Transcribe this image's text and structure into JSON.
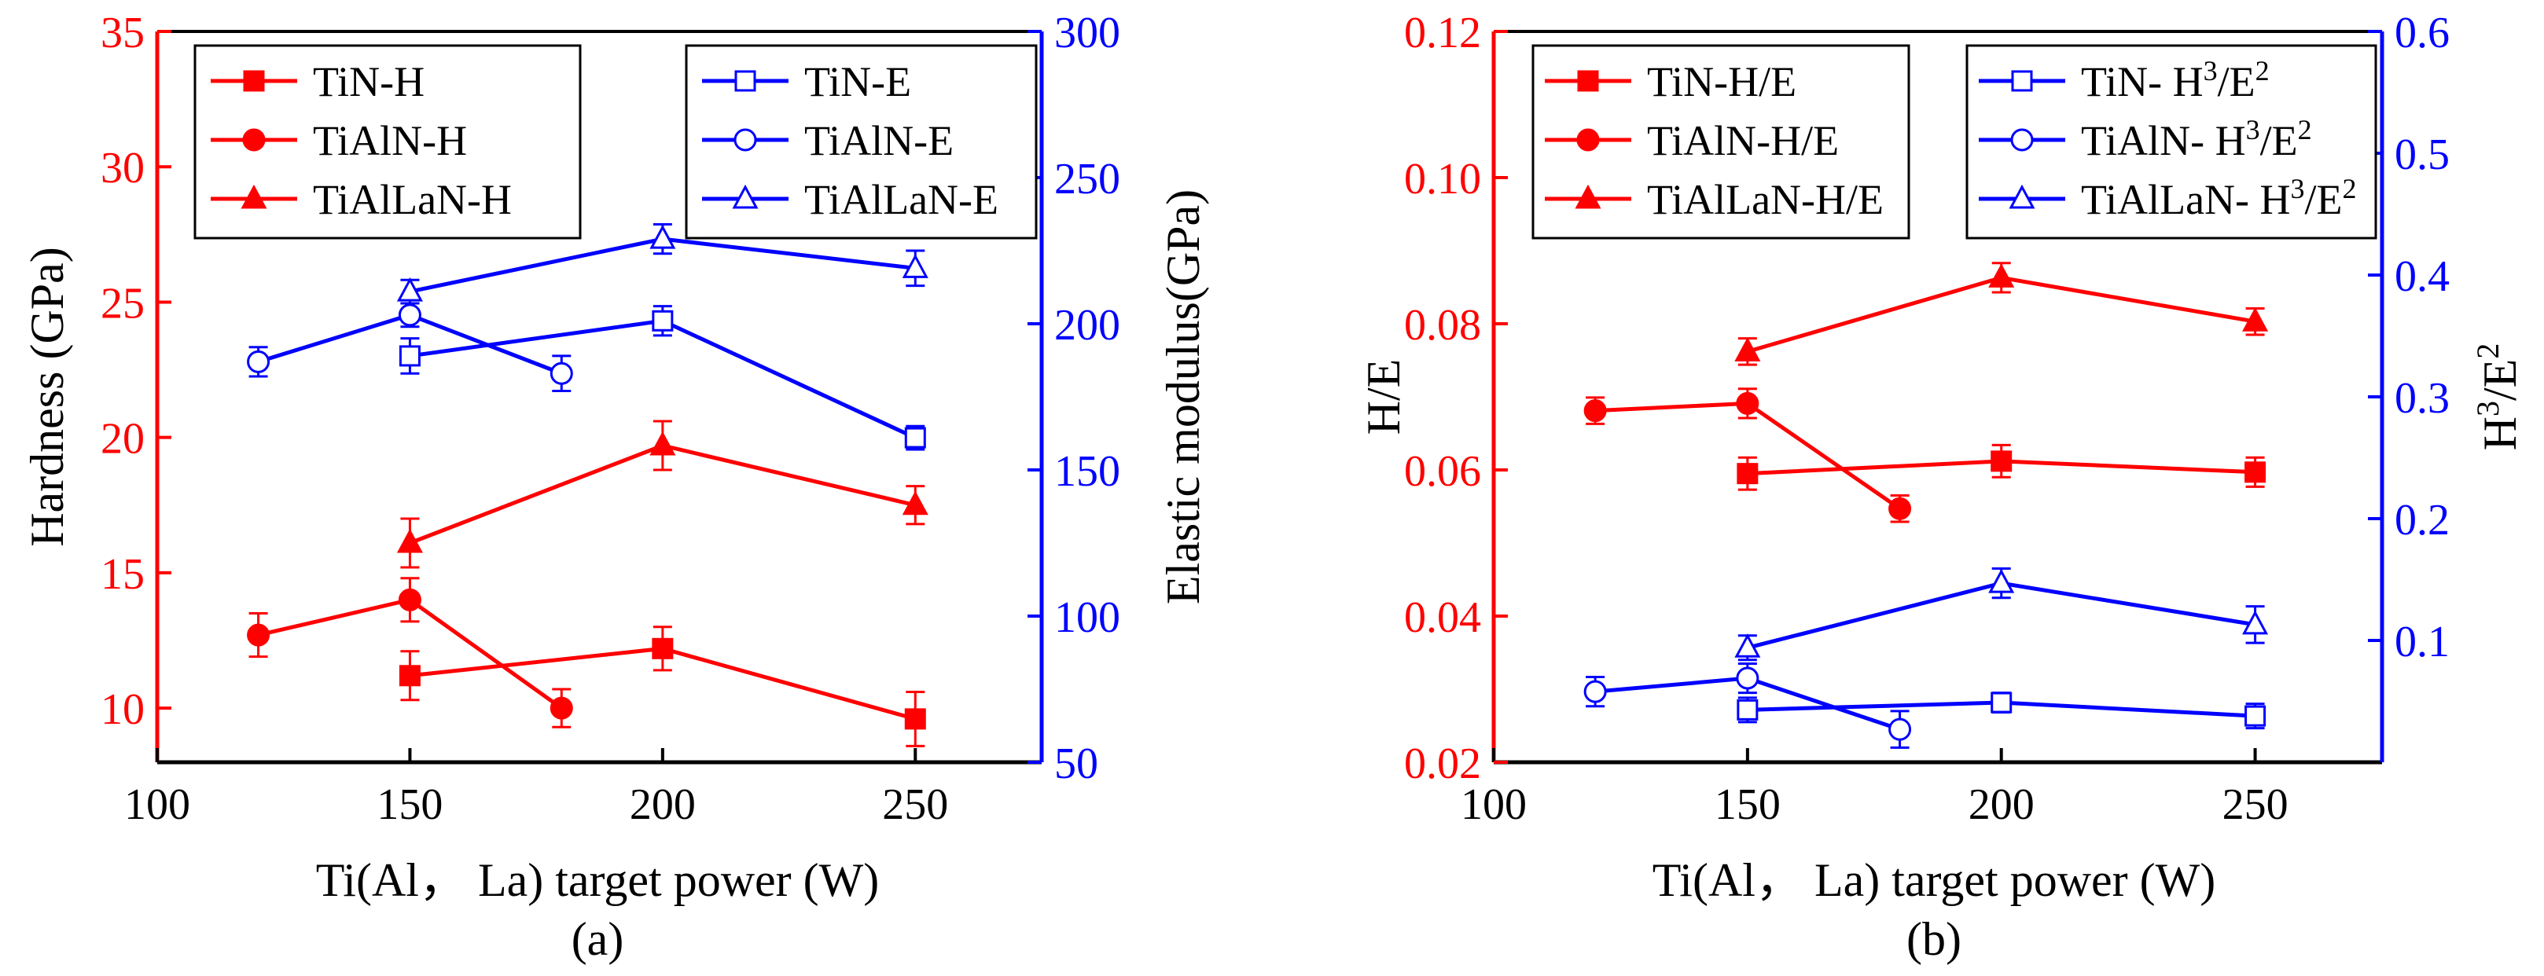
{
  "colors": {
    "red": "#ff0000",
    "blue": "#0000ff",
    "black": "#000000"
  },
  "chart_data": [
    {
      "type": "line",
      "panel_label": "(a)",
      "xlabel": "Ti(Al， La) target power (W)",
      "xlim": [
        100,
        275
      ],
      "x_ticks": [
        100,
        150,
        200,
        250
      ],
      "y_left": {
        "label": "Hardness (GPa)",
        "lim": [
          8,
          35
        ],
        "ticks": [
          10,
          15,
          20,
          25,
          30,
          35
        ],
        "tick_labels": [
          "10",
          "15",
          "20",
          "25",
          "30",
          "35"
        ]
      },
      "y_right": {
        "label": "Elastic modulus(GPa)",
        "lim": [
          50,
          300
        ],
        "ticks": [
          50,
          100,
          150,
          200,
          250,
          300
        ],
        "tick_labels": [
          "50",
          "100",
          "150",
          "200",
          "250",
          "300"
        ]
      },
      "series": [
        {
          "name": "TiN-H",
          "axis": "left",
          "color": "#ff0000",
          "marker": "square",
          "filled": true,
          "x": [
            150,
            200,
            250
          ],
          "y": [
            11.2,
            12.2,
            9.6
          ],
          "err": [
            0.9,
            0.8,
            1.0
          ]
        },
        {
          "name": "TiAlN-H",
          "axis": "left",
          "color": "#ff0000",
          "marker": "circle",
          "filled": true,
          "x": [
            120,
            150,
            180
          ],
          "y": [
            12.7,
            14.0,
            10.0
          ],
          "err": [
            0.8,
            0.8,
            0.7
          ]
        },
        {
          "name": "TiAlLaN-H",
          "axis": "left",
          "color": "#ff0000",
          "marker": "triangle",
          "filled": true,
          "x": [
            150,
            200,
            250
          ],
          "y": [
            16.1,
            19.7,
            17.5
          ],
          "err": [
            0.9,
            0.9,
            0.7
          ]
        },
        {
          "name": "TiN-E",
          "axis": "right",
          "color": "#0000ff",
          "marker": "square",
          "filled": false,
          "x": [
            150,
            200,
            250
          ],
          "y": [
            189,
            201,
            161
          ],
          "err": [
            6,
            5,
            4
          ]
        },
        {
          "name": "TiAlN-E",
          "axis": "right",
          "color": "#0000ff",
          "marker": "circle",
          "filled": false,
          "x": [
            120,
            150,
            180
          ],
          "y": [
            187,
            203,
            183
          ],
          "err": [
            5,
            4,
            6
          ]
        },
        {
          "name": "TiAlLaN-E",
          "axis": "right",
          "color": "#0000ff",
          "marker": "triangle",
          "filled": false,
          "x": [
            150,
            200,
            250
          ],
          "y": [
            211,
            229,
            219
          ],
          "err": [
            4,
            5,
            6
          ]
        }
      ]
    },
    {
      "type": "line",
      "panel_label": "(b)",
      "xlabel": "Ti(Al， La) target power (W)",
      "xlim": [
        100,
        275
      ],
      "x_ticks": [
        100,
        150,
        200,
        250
      ],
      "y_left": {
        "label": "H/E",
        "lim": [
          0.02,
          0.12
        ],
        "ticks": [
          0.02,
          0.04,
          0.06,
          0.08,
          0.1,
          0.12
        ],
        "tick_labels": [
          "0.02",
          "0.04",
          "0.06",
          "0.08",
          "0.10",
          "0.12"
        ]
      },
      "y_right": {
        "label_base": "H",
        "label_sup1": "3",
        "label_mid": "/E",
        "label_sup2": "2",
        "lim": [
          0,
          0.6
        ],
        "ticks": [
          0.1,
          0.2,
          0.3,
          0.4,
          0.5,
          0.6
        ],
        "tick_labels": [
          "0.1",
          "0.2",
          "0.3",
          "0.4",
          "0.5",
          "0.6"
        ]
      },
      "series": [
        {
          "name": "TiN-H/E",
          "axis": "left",
          "color": "#ff0000",
          "marker": "square",
          "filled": true,
          "x": [
            150,
            200,
            250
          ],
          "y": [
            0.0595,
            0.0612,
            0.0597
          ],
          "err": [
            0.0022,
            0.0022,
            0.002
          ]
        },
        {
          "name": "TiAlN-H/E",
          "axis": "left",
          "color": "#ff0000",
          "marker": "circle",
          "filled": true,
          "x": [
            120,
            150,
            180
          ],
          "y": [
            0.0681,
            0.0691,
            0.0547
          ],
          "err": [
            0.0018,
            0.002,
            0.0018
          ]
        },
        {
          "name": "TiAlLaN-H/E",
          "axis": "left",
          "color": "#ff0000",
          "marker": "triangle",
          "filled": true,
          "x": [
            150,
            200,
            250
          ],
          "y": [
            0.0762,
            0.0863,
            0.0803
          ],
          "err": [
            0.0018,
            0.002,
            0.0018
          ]
        },
        {
          "name": "TiN- H3/E2",
          "label_base": "TiN- H",
          "label_mid": "/E",
          "axis": "right",
          "color": "#0000ff",
          "marker": "square",
          "filled": false,
          "x": [
            150,
            200,
            250
          ],
          "y": [
            0.043,
            0.049,
            0.038
          ],
          "err": [
            0.01,
            0.008,
            0.01
          ]
        },
        {
          "name": "TiAlN- H3/E2",
          "label_base": "TiAlN- H",
          "label_mid": "/E",
          "axis": "right",
          "color": "#0000ff",
          "marker": "circle",
          "filled": false,
          "x": [
            120,
            150,
            180
          ],
          "y": [
            0.058,
            0.069,
            0.027
          ],
          "err": [
            0.012,
            0.012,
            0.015
          ]
        },
        {
          "name": "TiAlLaN- H3/E2",
          "label_base": "TiAlLaN- H",
          "label_mid": "/E",
          "axis": "right",
          "color": "#0000ff",
          "marker": "triangle",
          "filled": false,
          "x": [
            150,
            200,
            250
          ],
          "y": [
            0.094,
            0.147,
            0.113
          ],
          "err": [
            0.01,
            0.012,
            0.015
          ]
        }
      ],
      "legend_sup1": "3",
      "legend_sup2": "2"
    }
  ]
}
